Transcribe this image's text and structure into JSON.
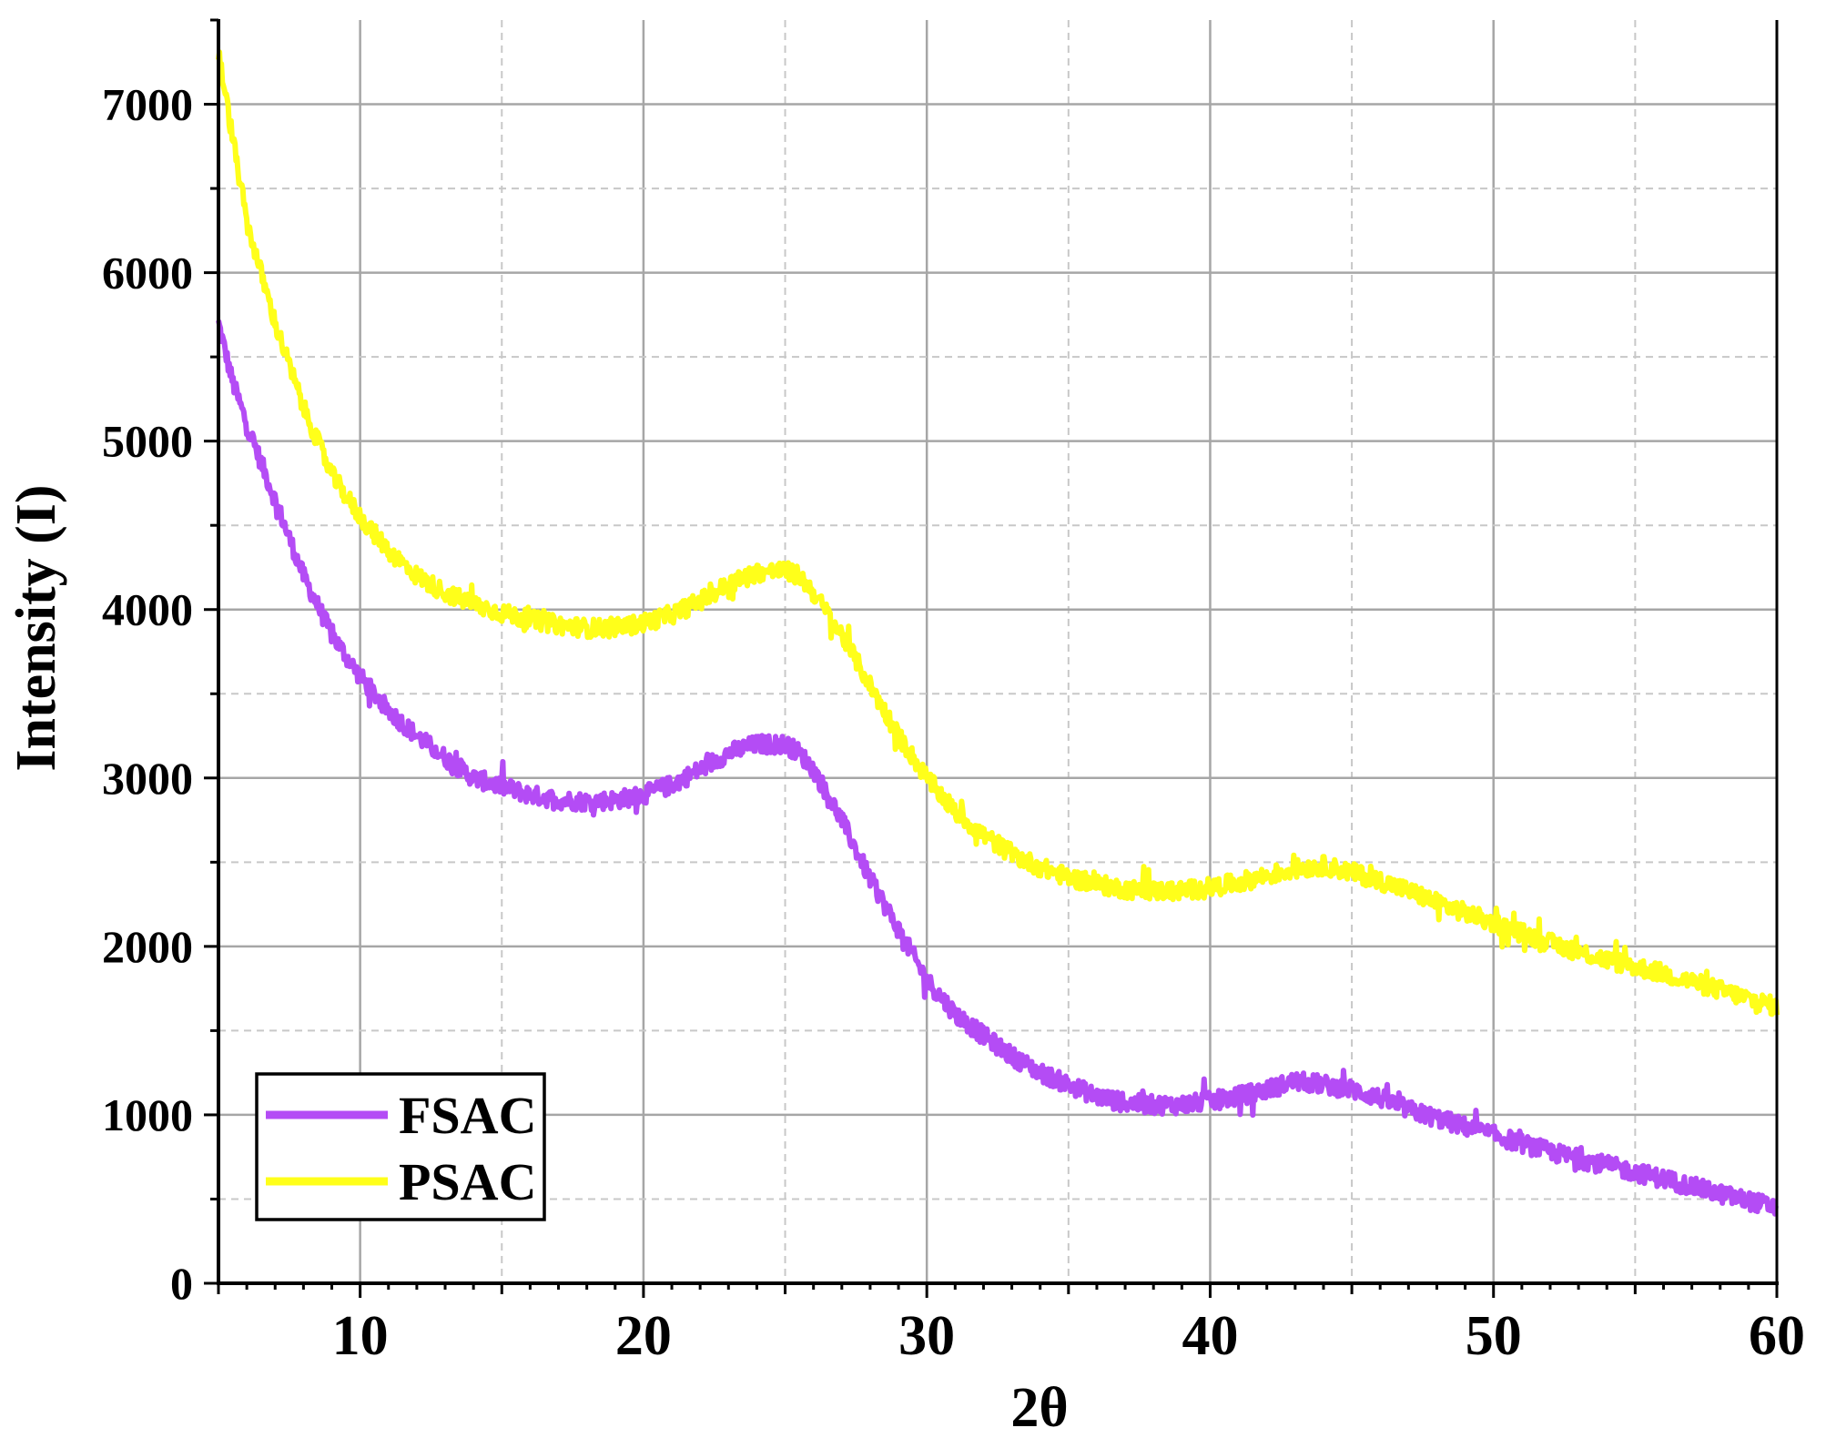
{
  "chart_data": {
    "type": "line",
    "xlabel": "2θ",
    "ylabel": "Intensity (I)",
    "xlim": [
      5,
      60
    ],
    "ylim": [
      0,
      7500
    ],
    "x_ticks": [
      10,
      20,
      30,
      40,
      50,
      60
    ],
    "y_ticks": [
      0,
      1000,
      2000,
      3000,
      4000,
      5000,
      6000,
      7000
    ],
    "grid": true,
    "legend_position": "bottom-left",
    "series": [
      {
        "name": "FSAC",
        "color": "#b44cf5",
        "x": [
          5,
          5.5,
          6,
          7,
          8,
          9,
          10,
          11,
          12,
          13,
          14,
          15,
          16,
          17,
          18,
          19,
          20,
          21,
          22,
          23,
          24,
          25,
          25.5,
          26,
          27,
          28,
          29,
          30,
          31,
          32,
          33,
          34,
          35,
          36,
          37,
          38,
          39,
          40,
          41,
          42,
          43,
          44,
          45,
          46,
          47,
          48,
          50,
          52,
          54,
          56,
          58,
          60
        ],
        "y": [
          5700,
          5350,
          5100,
          4650,
          4200,
          3850,
          3600,
          3400,
          3250,
          3120,
          3000,
          2950,
          2900,
          2870,
          2860,
          2870,
          2900,
          2960,
          3050,
          3150,
          3200,
          3200,
          3150,
          3050,
          2750,
          2400,
          2100,
          1800,
          1600,
          1470,
          1350,
          1250,
          1180,
          1110,
          1070,
          1060,
          1060,
          1080,
          1110,
          1150,
          1200,
          1180,
          1150,
          1100,
          1030,
          980,
          880,
          780,
          700,
          620,
          530,
          450
        ]
      },
      {
        "name": "PSAC",
        "color": "#ffff1a",
        "x": [
          5,
          5.5,
          6,
          7,
          8,
          9,
          10,
          11,
          12,
          13,
          14,
          15,
          16,
          17,
          18,
          19,
          20,
          21,
          22,
          23,
          24,
          25,
          25.5,
          26,
          27,
          28,
          29,
          30,
          31,
          32,
          33,
          34,
          35,
          36,
          37,
          38,
          39,
          40,
          41,
          42,
          43,
          44,
          45,
          46,
          47,
          48,
          50,
          52,
          54,
          56,
          58,
          60
        ],
        "y": [
          7300,
          6800,
          6300,
          5700,
          5200,
          4800,
          4550,
          4350,
          4200,
          4100,
          4030,
          3980,
          3940,
          3910,
          3890,
          3890,
          3920,
          3970,
          4050,
          4150,
          4220,
          4230,
          4200,
          4100,
          3850,
          3550,
          3250,
          3000,
          2800,
          2660,
          2550,
          2470,
          2410,
          2370,
          2340,
          2330,
          2330,
          2350,
          2380,
          2420,
          2460,
          2480,
          2440,
          2390,
          2330,
          2260,
          2140,
          2020,
          1920,
          1840,
          1740,
          1640
        ]
      }
    ]
  }
}
